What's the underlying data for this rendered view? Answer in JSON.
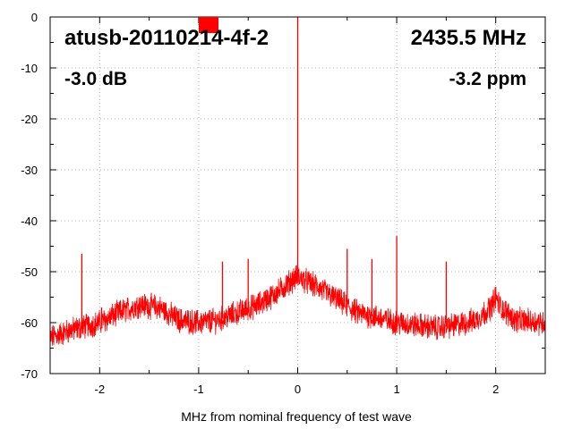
{
  "chart_data": {
    "type": "line",
    "title": "",
    "xlabel": "MHz from nominal frequency of test wave",
    "ylabel": "",
    "xlim": [
      -2.5,
      2.5
    ],
    "ylim": [
      -70,
      0
    ],
    "xticks": [
      "-2",
      "-1",
      "0",
      "1",
      "2"
    ],
    "xtick_values": [
      -2,
      -1,
      0,
      1,
      2
    ],
    "yticks": [
      "0",
      "-10",
      "-20",
      "-30",
      "-40",
      "-50",
      "-60",
      "-70"
    ],
    "ytick_values": [
      0,
      -10,
      -20,
      -30,
      -40,
      -50,
      -60,
      -70
    ],
    "grid": true,
    "series_color": "#ff0000",
    "annotations": {
      "device": "atusb-20110214-4f-2",
      "frequency": "2435.5 MHz",
      "level": "-3.0 dB",
      "offset": "-3.2 ppm"
    },
    "indicator_color": "#ff0000",
    "baseline_points": [
      [
        -2.5,
        -63
      ],
      [
        -2.3,
        -61.5
      ],
      [
        -2.0,
        -60
      ],
      [
        -1.8,
        -58
      ],
      [
        -1.6,
        -56.5
      ],
      [
        -1.4,
        -57
      ],
      [
        -1.2,
        -59.5
      ],
      [
        -1.0,
        -60
      ],
      [
        -0.8,
        -59.5
      ],
      [
        -0.6,
        -58
      ],
      [
        -0.4,
        -56.5
      ],
      [
        -0.2,
        -54
      ],
      [
        -0.05,
        -51.5
      ],
      [
        0.0,
        -51
      ],
      [
        0.05,
        -51.5
      ],
      [
        0.2,
        -53
      ],
      [
        0.4,
        -55.5
      ],
      [
        0.6,
        -58
      ],
      [
        0.8,
        -59
      ],
      [
        1.0,
        -60
      ],
      [
        1.2,
        -60.5
      ],
      [
        1.4,
        -61
      ],
      [
        1.6,
        -60.5
      ],
      [
        1.8,
        -59.5
      ],
      [
        1.95,
        -57
      ],
      [
        2.0,
        -55
      ],
      [
        2.05,
        -57
      ],
      [
        2.2,
        -59.5
      ],
      [
        2.5,
        -60
      ]
    ],
    "spurs": [
      {
        "x": -2.18,
        "y": -46.5
      },
      {
        "x": -1.98,
        "y": -57
      },
      {
        "x": -0.76,
        "y": -48
      },
      {
        "x": -0.5,
        "y": -47.5
      },
      {
        "x": 0.0,
        "y": 0
      },
      {
        "x": 0.5,
        "y": -45.5
      },
      {
        "x": 0.75,
        "y": -47.5
      },
      {
        "x": 1.0,
        "y": -43
      },
      {
        "x": 1.5,
        "y": -48
      },
      {
        "x": 2.0,
        "y": -53
      }
    ]
  }
}
